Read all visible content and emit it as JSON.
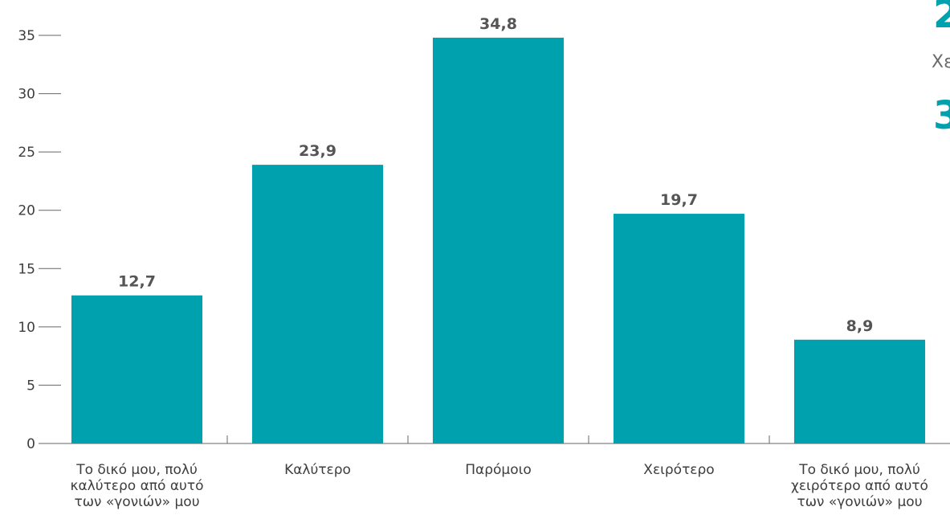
{
  "chart_data": {
    "type": "bar",
    "categories": [
      [
        "Το δικό μου, πολύ",
        "καλύτερο από αυτό",
        "των «γονιών» μου"
      ],
      [
        "Καλύτερο"
      ],
      [
        "Παρόμοιο"
      ],
      [
        "Χειρότερο"
      ],
      [
        "Το δικό μου, πολύ",
        "χειρότερο από αυτό",
        "των «γονιών» μου"
      ]
    ],
    "values": [
      12.7,
      23.9,
      34.8,
      19.7,
      8.9
    ],
    "value_labels": [
      "12,7",
      "23,9",
      "34,8",
      "19,7",
      "8,9"
    ],
    "ylim": [
      0,
      35
    ],
    "yticks": [
      0,
      5,
      10,
      15,
      20,
      25,
      30,
      35
    ],
    "grid": false,
    "bar_color": "#00A1AE",
    "axis_color": "#666666"
  },
  "cropped_fragment": {
    "top_digit": "2",
    "middle_text": "Χε",
    "bottom_digit": "3",
    "accent_color": "#00A1AE"
  }
}
